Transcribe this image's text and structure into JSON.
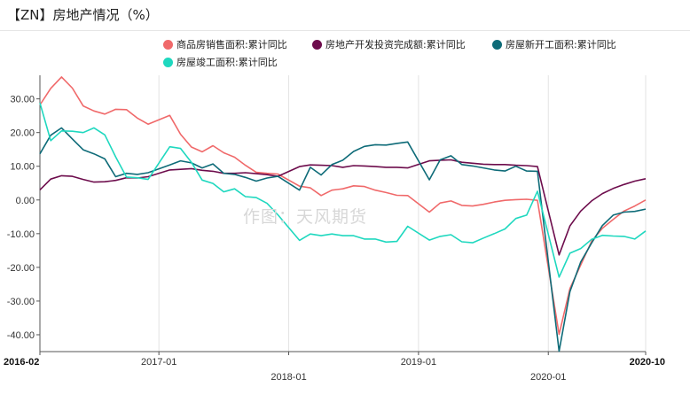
{
  "title": "【ZN】房地产情况（%）",
  "watermark": "作图：天风期货",
  "chart_data": {
    "type": "line",
    "title": "【ZN】房地产情况（%）",
    "xlabel": "",
    "ylabel": "",
    "ylim": [
      -45,
      37
    ],
    "yticks": [
      30,
      20,
      10,
      0,
      -10,
      -20,
      -30,
      -40
    ],
    "ytick_labels": [
      "30.00",
      "20.00",
      "10.00",
      "0.00",
      "-10.00",
      "-20.00",
      "-30.00",
      "-40.00"
    ],
    "x_start": "2016-02",
    "x_end": "2020-10",
    "xticks": [
      {
        "date": "2016-02",
        "label": "2016-02",
        "row": 1,
        "bold": true
      },
      {
        "date": "2017-01",
        "label": "2017-01",
        "row": 1,
        "bold": false
      },
      {
        "date": "2018-01",
        "label": "2018-01",
        "row": 2,
        "bold": false
      },
      {
        "date": "2019-01",
        "label": "2019-01",
        "row": 1,
        "bold": false
      },
      {
        "date": "2020-01",
        "label": "2020-01",
        "row": 2,
        "bold": false
      },
      {
        "date": "2020-10",
        "label": "2020-10",
        "row": 1,
        "bold": true
      }
    ],
    "grid": {
      "vertical": true,
      "horizontal": false
    },
    "legend_position": "top",
    "series": [
      {
        "name": "商品房销售面积:累计同比",
        "color": "#f0696a",
        "points": [
          [
            "2016-02",
            28.2
          ],
          [
            "2016-03",
            33.1
          ],
          [
            "2016-04",
            36.5
          ],
          [
            "2016-05",
            33.2
          ],
          [
            "2016-06",
            27.9
          ],
          [
            "2016-07",
            26.4
          ],
          [
            "2016-08",
            25.5
          ],
          [
            "2016-09",
            26.9
          ],
          [
            "2016-10",
            26.8
          ],
          [
            "2016-11",
            24.3
          ],
          [
            "2016-12",
            22.5
          ],
          [
            "2017-02",
            25.1
          ],
          [
            "2017-03",
            19.5
          ],
          [
            "2017-04",
            15.7
          ],
          [
            "2017-05",
            14.3
          ],
          [
            "2017-06",
            16.1
          ],
          [
            "2017-07",
            14.0
          ],
          [
            "2017-08",
            12.7
          ],
          [
            "2017-09",
            10.3
          ],
          [
            "2017-10",
            8.2
          ],
          [
            "2017-11",
            7.9
          ],
          [
            "2017-12",
            7.7
          ],
          [
            "2018-02",
            4.1
          ],
          [
            "2018-03",
            3.6
          ],
          [
            "2018-04",
            1.3
          ],
          [
            "2018-05",
            2.9
          ],
          [
            "2018-06",
            3.3
          ],
          [
            "2018-07",
            4.2
          ],
          [
            "2018-08",
            4.0
          ],
          [
            "2018-09",
            2.9
          ],
          [
            "2018-10",
            2.2
          ],
          [
            "2018-11",
            1.4
          ],
          [
            "2018-12",
            1.3
          ],
          [
            "2019-02",
            -3.6
          ],
          [
            "2019-03",
            -0.9
          ],
          [
            "2019-04",
            -0.3
          ],
          [
            "2019-05",
            -1.6
          ],
          [
            "2019-06",
            -1.8
          ],
          [
            "2019-07",
            -1.3
          ],
          [
            "2019-08",
            -0.6
          ],
          [
            "2019-09",
            -0.1
          ],
          [
            "2019-10",
            0.1
          ],
          [
            "2019-11",
            0.2
          ],
          [
            "2019-12",
            -0.1
          ],
          [
            "2020-02",
            -39.9
          ],
          [
            "2020-03",
            -26.3
          ],
          [
            "2020-04",
            -19.3
          ],
          [
            "2020-05",
            -12.3
          ],
          [
            "2020-06",
            -8.4
          ],
          [
            "2020-07",
            -5.8
          ],
          [
            "2020-08",
            -3.3
          ],
          [
            "2020-09",
            -1.8
          ],
          [
            "2020-10",
            0.0
          ]
        ]
      },
      {
        "name": "房地产开发投资完成额:累计同比",
        "color": "#6d0c4c",
        "points": [
          [
            "2016-02",
            3.0
          ],
          [
            "2016-03",
            6.2
          ],
          [
            "2016-04",
            7.2
          ],
          [
            "2016-05",
            7.0
          ],
          [
            "2016-06",
            6.1
          ],
          [
            "2016-07",
            5.3
          ],
          [
            "2016-08",
            5.4
          ],
          [
            "2016-09",
            5.8
          ],
          [
            "2016-10",
            6.6
          ],
          [
            "2016-11",
            6.5
          ],
          [
            "2016-12",
            6.9
          ],
          [
            "2017-02",
            8.9
          ],
          [
            "2017-03",
            9.1
          ],
          [
            "2017-04",
            9.3
          ],
          [
            "2017-05",
            8.8
          ],
          [
            "2017-06",
            8.5
          ],
          [
            "2017-07",
            7.9
          ],
          [
            "2017-08",
            7.9
          ],
          [
            "2017-09",
            8.1
          ],
          [
            "2017-10",
            7.8
          ],
          [
            "2017-11",
            7.5
          ],
          [
            "2017-12",
            7.0
          ],
          [
            "2018-02",
            9.9
          ],
          [
            "2018-03",
            10.4
          ],
          [
            "2018-04",
            10.3
          ],
          [
            "2018-05",
            10.2
          ],
          [
            "2018-06",
            9.7
          ],
          [
            "2018-07",
            10.2
          ],
          [
            "2018-08",
            10.1
          ],
          [
            "2018-09",
            9.9
          ],
          [
            "2018-10",
            9.7
          ],
          [
            "2018-11",
            9.7
          ],
          [
            "2018-12",
            9.5
          ],
          [
            "2019-02",
            11.6
          ],
          [
            "2019-03",
            11.8
          ],
          [
            "2019-04",
            11.9
          ],
          [
            "2019-05",
            11.2
          ],
          [
            "2019-06",
            10.9
          ],
          [
            "2019-07",
            10.6
          ],
          [
            "2019-08",
            10.5
          ],
          [
            "2019-09",
            10.5
          ],
          [
            "2019-10",
            10.3
          ],
          [
            "2019-11",
            10.2
          ],
          [
            "2019-12",
            9.9
          ],
          [
            "2020-02",
            -16.3
          ],
          [
            "2020-03",
            -7.7
          ],
          [
            "2020-04",
            -3.3
          ],
          [
            "2020-05",
            -0.3
          ],
          [
            "2020-06",
            1.9
          ],
          [
            "2020-07",
            3.4
          ],
          [
            "2020-08",
            4.6
          ],
          [
            "2020-09",
            5.6
          ],
          [
            "2020-10",
            6.3
          ]
        ]
      },
      {
        "name": "房屋新开工面积:累计同比",
        "color": "#0e6b78",
        "points": [
          [
            "2016-02",
            13.7
          ],
          [
            "2016-03",
            19.2
          ],
          [
            "2016-04",
            21.4
          ],
          [
            "2016-05",
            18.1
          ],
          [
            "2016-06",
            14.9
          ],
          [
            "2016-07",
            13.7
          ],
          [
            "2016-08",
            12.2
          ],
          [
            "2016-09",
            6.9
          ],
          [
            "2016-10",
            7.9
          ],
          [
            "2016-11",
            7.6
          ],
          [
            "2016-12",
            8.1
          ],
          [
            "2017-02",
            10.4
          ],
          [
            "2017-03",
            11.6
          ],
          [
            "2017-04",
            11.0
          ],
          [
            "2017-05",
            9.5
          ],
          [
            "2017-06",
            10.7
          ],
          [
            "2017-07",
            7.9
          ],
          [
            "2017-08",
            7.6
          ],
          [
            "2017-09",
            6.7
          ],
          [
            "2017-10",
            5.6
          ],
          [
            "2017-11",
            6.5
          ],
          [
            "2017-12",
            7.0
          ],
          [
            "2018-02",
            2.9
          ],
          [
            "2018-03",
            9.7
          ],
          [
            "2018-04",
            7.4
          ],
          [
            "2018-05",
            10.5
          ],
          [
            "2018-06",
            11.8
          ],
          [
            "2018-07",
            14.4
          ],
          [
            "2018-08",
            15.9
          ],
          [
            "2018-09",
            16.4
          ],
          [
            "2018-10",
            16.3
          ],
          [
            "2018-11",
            16.8
          ],
          [
            "2018-12",
            17.2
          ],
          [
            "2019-02",
            6.0
          ],
          [
            "2019-03",
            11.9
          ],
          [
            "2019-04",
            13.1
          ],
          [
            "2019-05",
            10.5
          ],
          [
            "2019-06",
            10.1
          ],
          [
            "2019-07",
            9.5
          ],
          [
            "2019-08",
            8.9
          ],
          [
            "2019-09",
            8.6
          ],
          [
            "2019-10",
            10.0
          ],
          [
            "2019-11",
            8.6
          ],
          [
            "2019-12",
            8.5
          ],
          [
            "2020-02",
            -44.9
          ],
          [
            "2020-03",
            -27.2
          ],
          [
            "2020-04",
            -18.4
          ],
          [
            "2020-05",
            -12.8
          ],
          [
            "2020-06",
            -7.6
          ],
          [
            "2020-07",
            -4.5
          ],
          [
            "2020-08",
            -3.6
          ],
          [
            "2020-09",
            -3.4
          ],
          [
            "2020-10",
            -2.7
          ]
        ]
      },
      {
        "name": "房屋竣工面积:累计同比",
        "color": "#1fd8bf",
        "points": [
          [
            "2016-02",
            28.8
          ],
          [
            "2016-03",
            17.6
          ],
          [
            "2016-04",
            20.5
          ],
          [
            "2016-05",
            20.4
          ],
          [
            "2016-06",
            20.0
          ],
          [
            "2016-07",
            21.4
          ],
          [
            "2016-08",
            19.3
          ],
          [
            "2016-09",
            12.8
          ],
          [
            "2016-10",
            6.8
          ],
          [
            "2016-11",
            6.6
          ],
          [
            "2016-12",
            6.1
          ],
          [
            "2017-02",
            15.8
          ],
          [
            "2017-03",
            15.3
          ],
          [
            "2017-04",
            11.2
          ],
          [
            "2017-05",
            5.9
          ],
          [
            "2017-06",
            4.9
          ],
          [
            "2017-07",
            2.4
          ],
          [
            "2017-08",
            3.3
          ],
          [
            "2017-09",
            1.0
          ],
          [
            "2017-10",
            0.7
          ],
          [
            "2017-11",
            -1.0
          ],
          [
            "2017-12",
            -4.4
          ],
          [
            "2018-02",
            -12.0
          ],
          [
            "2018-03",
            -10.1
          ],
          [
            "2018-04",
            -10.6
          ],
          [
            "2018-05",
            -10.1
          ],
          [
            "2018-06",
            -10.6
          ],
          [
            "2018-07",
            -10.6
          ],
          [
            "2018-08",
            -11.6
          ],
          [
            "2018-09",
            -11.6
          ],
          [
            "2018-10",
            -12.5
          ],
          [
            "2018-11",
            -12.3
          ],
          [
            "2018-12",
            -7.8
          ],
          [
            "2019-02",
            -11.9
          ],
          [
            "2019-03",
            -10.8
          ],
          [
            "2019-04",
            -10.3
          ],
          [
            "2019-05",
            -12.4
          ],
          [
            "2019-06",
            -12.7
          ],
          [
            "2019-07",
            -11.3
          ],
          [
            "2019-08",
            -10.0
          ],
          [
            "2019-09",
            -8.6
          ],
          [
            "2019-10",
            -5.5
          ],
          [
            "2019-11",
            -4.5
          ],
          [
            "2019-12",
            2.6
          ],
          [
            "2020-02",
            -22.9
          ],
          [
            "2020-03",
            -15.8
          ],
          [
            "2020-04",
            -14.4
          ],
          [
            "2020-05",
            -11.7
          ],
          [
            "2020-06",
            -10.5
          ],
          [
            "2020-07",
            -10.7
          ],
          [
            "2020-08",
            -10.8
          ],
          [
            "2020-09",
            -11.6
          ],
          [
            "2020-10",
            -9.2
          ]
        ]
      }
    ]
  }
}
